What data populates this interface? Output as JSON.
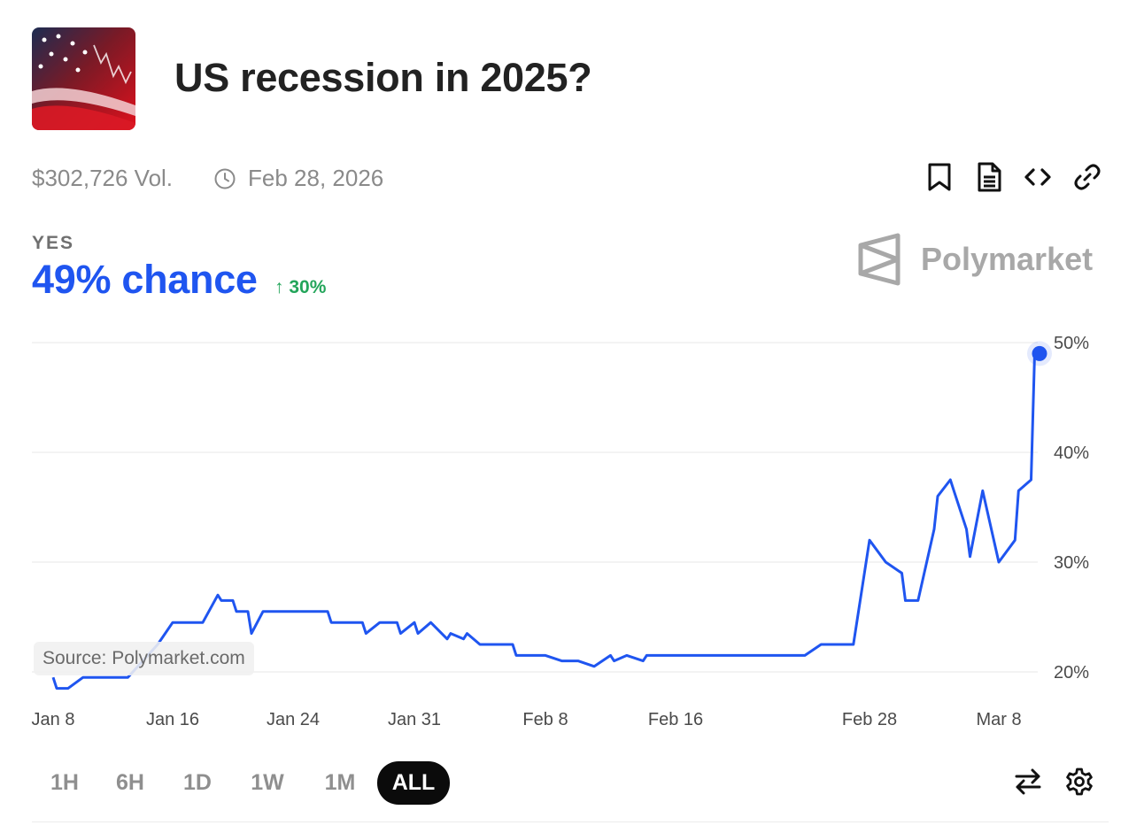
{
  "header": {
    "title": "US recession in 2025?",
    "volume": "$302,726 Vol.",
    "end_date": "Feb 28, 2026"
  },
  "toolbar": {
    "icons": [
      "bookmark-icon",
      "document-icon",
      "embed-code-icon",
      "link-icon"
    ]
  },
  "outcome": {
    "label": "YES",
    "chance": "49% chance",
    "change": "30%",
    "change_color": "#23a55a"
  },
  "brand": {
    "name": "Polymarket",
    "color": "#a8a8a8"
  },
  "source_label": "Source: Polymarket.com",
  "timeframes": [
    "1H",
    "6H",
    "1D",
    "1W",
    "1M",
    "ALL"
  ],
  "active_timeframe": "ALL",
  "bottom_icons": [
    "swap-arrows-icon",
    "settings-gear-icon"
  ],
  "accent_color": "#1f55f0",
  "chart_data": {
    "type": "line",
    "series": [
      {
        "color": "#1f55f0",
        "points": [
          [
            "Jan 8",
            19.5
          ],
          [
            "Jan 8",
            18.5
          ],
          [
            "Jan 9",
            18.5
          ],
          [
            "Jan 10",
            19.5
          ],
          [
            "Jan 11",
            19.5
          ],
          [
            "Jan 12",
            19.5
          ],
          [
            "Jan 13",
            19.5
          ],
          [
            "Jan 14",
            21
          ],
          [
            "Jan 15",
            22.5
          ],
          [
            "Jan 16",
            24.5
          ],
          [
            "Jan 17",
            24.5
          ],
          [
            "Jan 18",
            24.5
          ],
          [
            "Jan 19",
            27
          ],
          [
            "Jan 19",
            26.5
          ],
          [
            "Jan 20",
            26.5
          ],
          [
            "Jan 20",
            25.5
          ],
          [
            "Jan 21",
            25.5
          ],
          [
            "Jan 21",
            23.5
          ],
          [
            "Jan 22",
            25.5
          ],
          [
            "Jan 23",
            25.5
          ],
          [
            "Jan 24",
            25.5
          ],
          [
            "Jan 25",
            25.5
          ],
          [
            "Jan 26",
            25.5
          ],
          [
            "Jan 26",
            24.5
          ],
          [
            "Jan 27",
            24.5
          ],
          [
            "Jan 28",
            24.5
          ],
          [
            "Jan 28",
            23.5
          ],
          [
            "Jan 29",
            24.5
          ],
          [
            "Jan 30",
            24.5
          ],
          [
            "Jan 30",
            23.5
          ],
          [
            "Jan 31",
            24.5
          ],
          [
            "Jan 31",
            23.5
          ],
          [
            "Feb 1",
            24.5
          ],
          [
            "Feb 2",
            23
          ],
          [
            "Feb 2",
            23.5
          ],
          [
            "Feb 3",
            23
          ],
          [
            "Feb 3",
            23.5
          ],
          [
            "Feb 4",
            22.5
          ],
          [
            "Feb 5",
            22.5
          ],
          [
            "Feb 6",
            22.5
          ],
          [
            "Feb 6",
            21.5
          ],
          [
            "Feb 7",
            21.5
          ],
          [
            "Feb 8",
            21.5
          ],
          [
            "Feb 9",
            21
          ],
          [
            "Feb 10",
            21
          ],
          [
            "Feb 11",
            20.5
          ],
          [
            "Feb 12",
            21.5
          ],
          [
            "Feb 12",
            21
          ],
          [
            "Feb 13",
            21.5
          ],
          [
            "Feb 14",
            21
          ],
          [
            "Feb 14",
            21.5
          ],
          [
            "Feb 16",
            21.5
          ],
          [
            "Feb 20",
            21.5
          ],
          [
            "Feb 24",
            21.5
          ],
          [
            "Feb 25",
            22.5
          ],
          [
            "Feb 27",
            22.5
          ],
          [
            "Feb 28",
            32
          ],
          [
            "Mar 1",
            30
          ],
          [
            "Mar 2",
            29
          ],
          [
            "Mar 2",
            26.5
          ],
          [
            "Mar 3",
            26.5
          ],
          [
            "Mar 4",
            33
          ],
          [
            "Mar 4",
            36
          ],
          [
            "Mar 5",
            37.5
          ],
          [
            "Mar 5",
            36.5
          ],
          [
            "Mar 6",
            33
          ],
          [
            "Mar 6",
            30.5
          ],
          [
            "Mar 7",
            36.5
          ],
          [
            "Mar 8",
            30
          ],
          [
            "Mar 9",
            32
          ],
          [
            "Mar 9",
            36.5
          ],
          [
            "Mar 10",
            37.5
          ],
          [
            "Mar 10",
            49
          ]
        ]
      }
    ],
    "x_ticks": [
      "Jan 8",
      "Jan 16",
      "Jan 24",
      "Jan 31",
      "Feb 8",
      "Feb 16",
      "Feb 28",
      "Mar 8"
    ],
    "y_ticks": [
      20,
      30,
      40,
      50
    ],
    "y_tick_format": "{v}%",
    "ylim": [
      19,
      50
    ],
    "grid": true,
    "legend": "none"
  }
}
